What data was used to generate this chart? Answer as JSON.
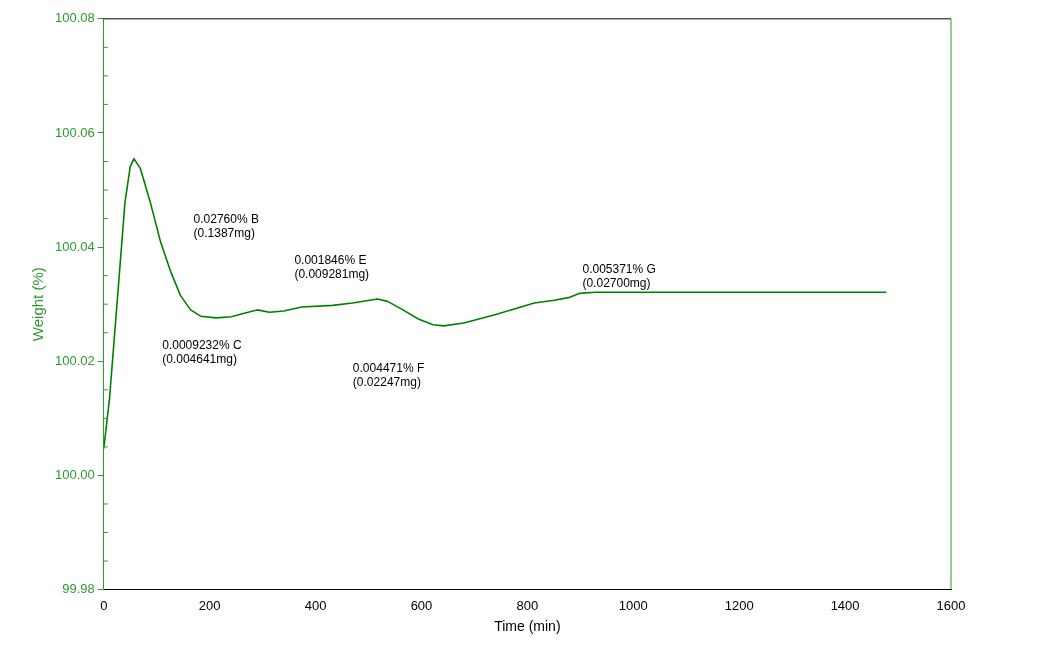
{
  "chart_data": {
    "type": "line",
    "xlabel": "Time (min)",
    "ylabel": "Weight (%)",
    "xlim": [
      0,
      1600
    ],
    "xticks": [
      0,
      200,
      400,
      600,
      800,
      1000,
      1200,
      1400,
      1600
    ],
    "ylim": [
      99.98,
      100.08
    ],
    "yticks": [
      {
        "value": 99.98,
        "label": "99.98"
      },
      {
        "value": 100,
        "label": "100.00"
      },
      {
        "value": 100.02,
        "label": "100.02"
      },
      {
        "value": 100.04,
        "label": "100.04"
      },
      {
        "value": 100.06,
        "label": "100.06"
      },
      {
        "value": 100.08,
        "label": "100.08"
      }
    ],
    "grid": false,
    "legend": false,
    "marker": "none",
    "line_style": "solid",
    "series": [
      {
        "color": "#008000",
        "x": [
          0,
          11,
          27,
          40,
          50,
          57,
          69,
          88,
          107,
          126,
          145,
          164,
          183,
          212,
          241,
          269,
          290,
          313,
          340,
          374,
          432,
          470,
          517,
          536,
          565,
          594,
          622,
          642,
          680,
          737,
          813,
          851,
          880,
          899,
          928,
          1138,
          1478
        ],
        "values": [
          100.0047,
          100.0136,
          100.0324,
          100.0478,
          100.0541,
          100.0555,
          100.0538,
          100.0478,
          100.041,
          100.0358,
          100.0315,
          100.029,
          100.0279,
          100.0276,
          100.0278,
          100.0285,
          100.029,
          100.0286,
          100.0288,
          100.0295,
          100.0298,
          100.0302,
          100.0309,
          100.0305,
          100.029,
          100.0274,
          100.0264,
          100.0262,
          100.0267,
          100.0281,
          100.0302,
          100.0307,
          100.0312,
          100.0319,
          100.0321,
          100.0321,
          100.0321
        ]
      }
    ],
    "annotations": [
      "0.02760% B\n(0.1387mg)",
      "0.0009232% C\n(0.004641mg)",
      "0.001846% E\n(0.009281mg)",
      "0.004471% F\n(0.02247mg)",
      "0.005371% G\n(0.02700mg)"
    ]
  }
}
